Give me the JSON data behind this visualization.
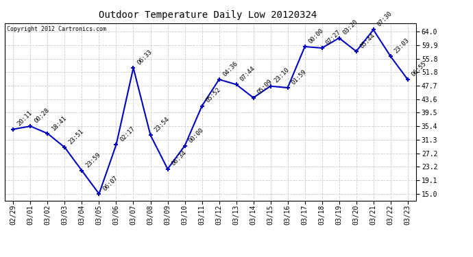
{
  "title": "Outdoor Temperature Daily Low 20120324",
  "copyright": "Copyright 2012 Cartronics.com",
  "x_labels": [
    "02/29",
    "03/01",
    "03/02",
    "03/03",
    "03/04",
    "03/05",
    "03/06",
    "03/07",
    "03/08",
    "03/09",
    "03/10",
    "03/11",
    "03/12",
    "03/13",
    "03/14",
    "03/15",
    "03/16",
    "03/17",
    "03/18",
    "03/19",
    "03/20",
    "03/21",
    "03/22",
    "03/23"
  ],
  "y_values": [
    34.5,
    35.4,
    33.2,
    29.0,
    22.0,
    15.0,
    29.8,
    53.0,
    32.7,
    22.5,
    29.5,
    41.5,
    49.5,
    48.0,
    44.0,
    47.5,
    47.0,
    59.4,
    59.0,
    62.0,
    58.0,
    64.5,
    56.5,
    49.5
  ],
  "time_labels": [
    "20:11",
    "00:28",
    "18:41",
    "23:51",
    "23:59",
    "06:07",
    "02:17",
    "06:33",
    "23:54",
    "06:34",
    "00:00",
    "05:52",
    "04:36",
    "07:44",
    "05:09",
    "23:10",
    "01:59",
    "00:00",
    "07:27",
    "03:20",
    "05:44",
    "07:30",
    "23:03",
    "06:55"
  ],
  "y_ticks": [
    15.0,
    19.1,
    23.2,
    27.2,
    31.3,
    35.4,
    39.5,
    43.6,
    47.7,
    51.8,
    55.8,
    59.9,
    64.0
  ],
  "ylim": [
    13.0,
    66.5
  ],
  "line_color": "#0000bb",
  "marker_color": "#0000bb",
  "bg_color": "#ffffff",
  "grid_color": "#cccccc",
  "title_fontsize": 10,
  "label_fontsize": 6.5,
  "tick_fontsize": 7,
  "copyright_fontsize": 6
}
